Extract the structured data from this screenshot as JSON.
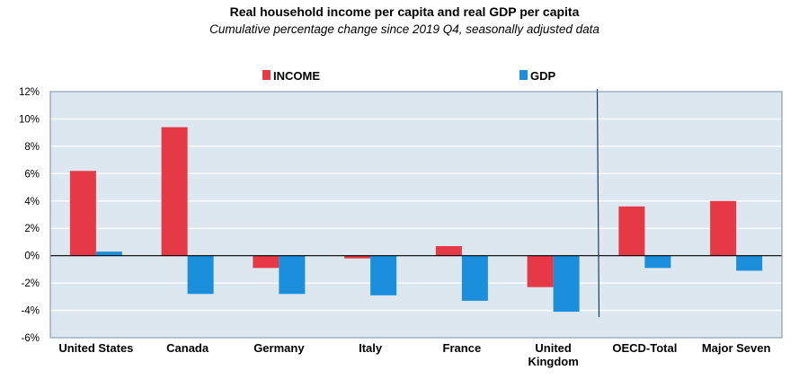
{
  "chart_data": {
    "type": "bar",
    "title": "Real household income per capita and real GDP per capita",
    "subtitle": "Cumulative percentage change since 2019 Q4, seasonally adjusted data",
    "categories": [
      [
        "United States"
      ],
      [
        "Canada"
      ],
      [
        "Germany"
      ],
      [
        "Italy"
      ],
      [
        "France"
      ],
      [
        "United",
        "Kingdom"
      ],
      [
        "OECD-Total"
      ],
      [
        "Major Seven"
      ]
    ],
    "series": [
      {
        "name": "INCOME",
        "color": "#e63946",
        "values": [
          6.2,
          9.4,
          -0.9,
          -0.2,
          0.7,
          -2.3,
          3.6,
          4.0
        ]
      },
      {
        "name": "GDP",
        "color": "#1c8fdc",
        "values": [
          0.3,
          -2.8,
          -2.8,
          -2.9,
          -3.3,
          -4.1,
          -0.9,
          -1.1
        ]
      }
    ],
    "ylim": [
      -6,
      12
    ],
    "yticks": [
      -6,
      -4,
      -2,
      0,
      2,
      4,
      6,
      8,
      10,
      12
    ],
    "ytick_labels": [
      "-6%",
      "-4%",
      "-2%",
      "0%",
      "2%",
      "4%",
      "6%",
      "8%",
      "10%",
      "12%"
    ],
    "xlabel": "",
    "ylabel": "",
    "grid": true,
    "legend_position": "top-center",
    "separator_after_category": 5,
    "background_color": "#dde7ef",
    "grid_color": "#ffffff"
  }
}
